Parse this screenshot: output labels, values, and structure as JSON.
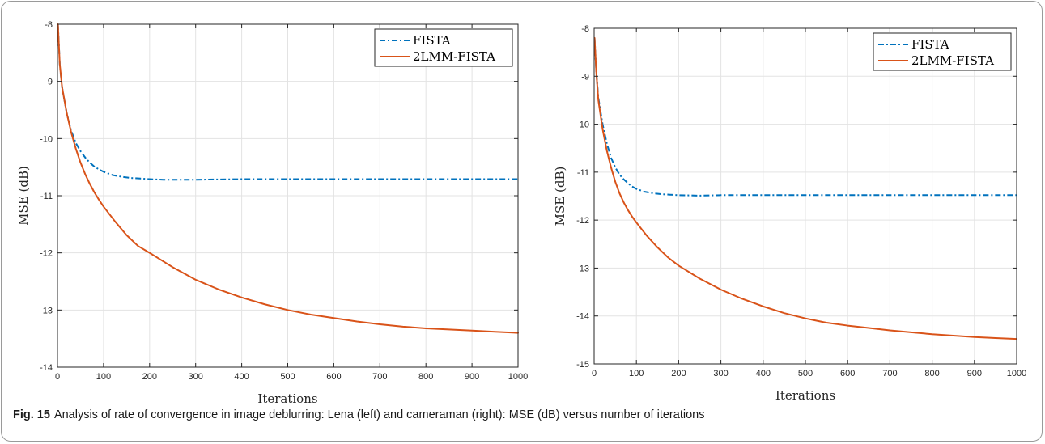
{
  "caption": {
    "label": "Fig. 15",
    "text": "Analysis of rate of convergence in image deblurring: Lena (left) and cameraman (right): MSE (dB) versus number of iterations"
  },
  "colors": {
    "fista": "#0072BD",
    "lmm": "#D95319",
    "grid": "#e3e3e3",
    "axis": "#262626"
  },
  "chart_data": [
    {
      "type": "line",
      "title": "",
      "xlabel": "Iterations",
      "ylabel": "MSE (dB)",
      "xlim": [
        0,
        1000
      ],
      "ylim": [
        -14,
        -8
      ],
      "xticks": [
        0,
        100,
        200,
        300,
        400,
        500,
        600,
        700,
        800,
        900,
        1000
      ],
      "yticks": [
        -14,
        -13,
        -12,
        -11,
        -10,
        -9,
        -8
      ],
      "grid": true,
      "legend": "top-right",
      "series": [
        {
          "name": "FISTA",
          "style": "dash-dot",
          "color": "#0072BD",
          "x": [
            1,
            5,
            10,
            20,
            30,
            40,
            50,
            60,
            70,
            80,
            90,
            100,
            120,
            140,
            160,
            180,
            200,
            230,
            260,
            300,
            400,
            500,
            600,
            700,
            800,
            900,
            1000
          ],
          "y": [
            -8.0,
            -8.7,
            -9.1,
            -9.55,
            -9.87,
            -10.08,
            -10.22,
            -10.33,
            -10.42,
            -10.49,
            -10.54,
            -10.58,
            -10.64,
            -10.67,
            -10.69,
            -10.7,
            -10.71,
            -10.72,
            -10.72,
            -10.72,
            -10.71,
            -10.71,
            -10.71,
            -10.71,
            -10.71,
            -10.71,
            -10.71
          ]
        },
        {
          "name": "2LMM-FISTA",
          "style": "solid",
          "color": "#D95319",
          "x": [
            1,
            5,
            10,
            20,
            30,
            40,
            50,
            60,
            70,
            80,
            90,
            100,
            125,
            150,
            175,
            200,
            250,
            300,
            350,
            400,
            450,
            500,
            550,
            600,
            650,
            700,
            750,
            800,
            850,
            900,
            950,
            1000
          ],
          "y": [
            -8.0,
            -8.7,
            -9.1,
            -9.55,
            -9.9,
            -10.18,
            -10.42,
            -10.62,
            -10.79,
            -10.94,
            -11.07,
            -11.19,
            -11.45,
            -11.69,
            -11.88,
            -12.0,
            -12.25,
            -12.47,
            -12.64,
            -12.78,
            -12.9,
            -13.0,
            -13.08,
            -13.14,
            -13.2,
            -13.25,
            -13.29,
            -13.32,
            -13.34,
            -13.36,
            -13.38,
            -13.4
          ]
        }
      ]
    },
    {
      "type": "line",
      "title": "",
      "xlabel": "Iterations",
      "ylabel": "MSE (dB)",
      "xlim": [
        0,
        1000
      ],
      "ylim": [
        -15,
        -8
      ],
      "xticks": [
        0,
        100,
        200,
        300,
        400,
        500,
        600,
        700,
        800,
        900,
        1000
      ],
      "yticks": [
        -15,
        -14,
        -13,
        -12,
        -11,
        -10,
        -9,
        -8
      ],
      "grid": true,
      "legend": "top-right",
      "series": [
        {
          "name": "FISTA",
          "style": "dash-dot",
          "color": "#0072BD",
          "x": [
            1,
            5,
            10,
            20,
            30,
            40,
            50,
            60,
            70,
            80,
            90,
            100,
            120,
            140,
            160,
            180,
            200,
            250,
            300,
            400,
            500,
            600,
            700,
            800,
            900,
            1000
          ],
          "y": [
            -8.2,
            -8.9,
            -9.45,
            -10.0,
            -10.4,
            -10.7,
            -10.9,
            -11.05,
            -11.15,
            -11.23,
            -11.3,
            -11.35,
            -11.41,
            -11.44,
            -11.46,
            -11.47,
            -11.48,
            -11.49,
            -11.48,
            -11.48,
            -11.48,
            -11.48,
            -11.48,
            -11.48,
            -11.48,
            -11.48
          ]
        },
        {
          "name": "2LMM-FISTA",
          "style": "solid",
          "color": "#D95319",
          "x": [
            1,
            5,
            10,
            20,
            30,
            40,
            50,
            60,
            70,
            80,
            90,
            100,
            125,
            150,
            175,
            200,
            250,
            300,
            350,
            400,
            450,
            500,
            550,
            600,
            650,
            700,
            750,
            800,
            850,
            900,
            950,
            1000
          ],
          "y": [
            -8.2,
            -8.9,
            -9.5,
            -10.1,
            -10.55,
            -10.9,
            -11.2,
            -11.44,
            -11.63,
            -11.79,
            -11.93,
            -12.05,
            -12.33,
            -12.57,
            -12.78,
            -12.95,
            -13.22,
            -13.45,
            -13.64,
            -13.8,
            -13.94,
            -14.05,
            -14.14,
            -14.2,
            -14.25,
            -14.3,
            -14.34,
            -14.38,
            -14.41,
            -14.44,
            -14.46,
            -14.48
          ]
        }
      ]
    }
  ]
}
